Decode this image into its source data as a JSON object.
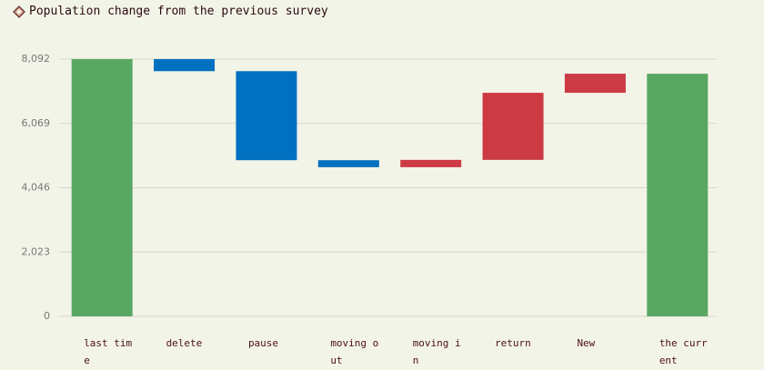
{
  "chart_data": {
    "type": "waterfall",
    "title": "Population change from the previous survey",
    "categories": [
      "last time",
      "delete",
      "pause",
      "moving out",
      "moving in",
      "return",
      "New",
      "the current"
    ],
    "values": [
      8092,
      -380,
      -2800,
      -220,
      230,
      2110,
      600,
      7632
    ],
    "is_total": [
      true,
      false,
      false,
      false,
      false,
      false,
      false,
      true
    ],
    "total_color": "#59a862",
    "increase_color": "#cc3a44",
    "decrease_color": "#0070c0",
    "ylim": [
      0,
      8092
    ],
    "yticks": [
      0,
      {
        "value": 2023,
        "label": "2,023"
      },
      {
        "value": 4046,
        "label": "4,046"
      },
      {
        "value": 6069,
        "label": "6,069"
      },
      {
        "value": 8092,
        "label": "8,092"
      }
    ],
    "grid": true
  }
}
